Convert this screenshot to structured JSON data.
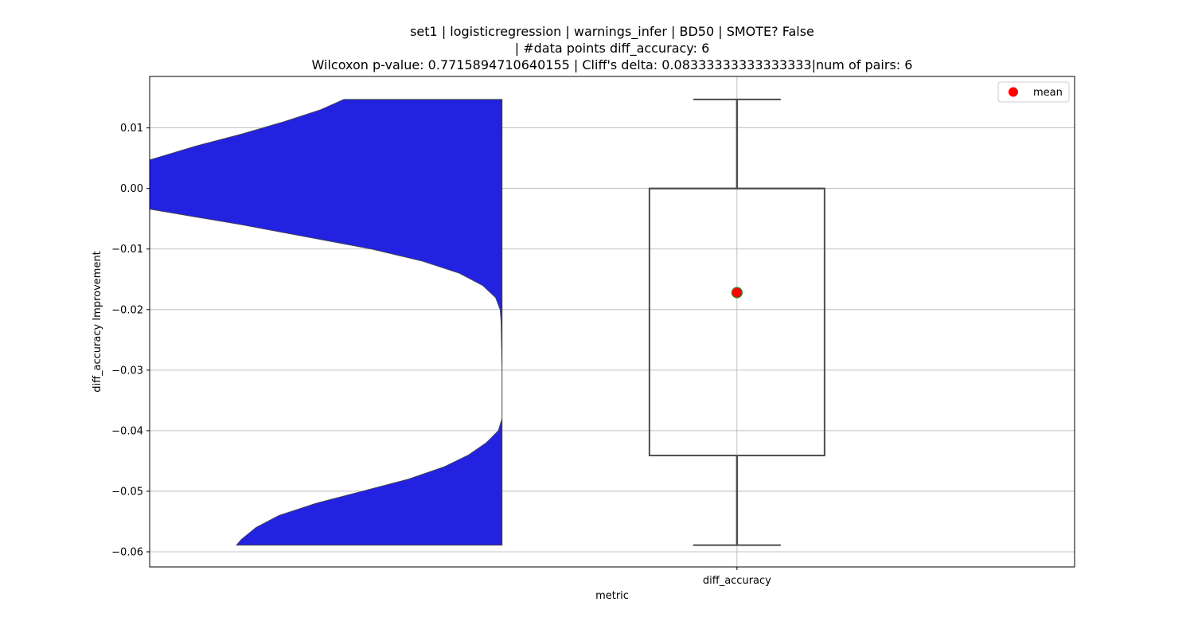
{
  "chart_data": {
    "type": "violin+box",
    "title": [
      "set1 | logisticregression | warnings_infer | BD50 | SMOTE? False",
      "| #data points diff_accuracy: 6",
      "Wilcoxon p-value: 0.7715894710640155 | Cliff's delta: 0.08333333333333333|num of pairs: 6"
    ],
    "xlabel": "metric",
    "ylabel": "diff_accuracy Improvement",
    "categories": [
      "diff_accuracy"
    ],
    "ylim": [
      -0.0625,
      0.0185
    ],
    "yticks": [
      0.01,
      0.0,
      -0.01,
      -0.02,
      -0.03,
      -0.04,
      -0.05,
      -0.06
    ],
    "ytick_labels": [
      "0.01",
      "0.00",
      "−0.01",
      "−0.02",
      "−0.03",
      "−0.04",
      "−0.05",
      "−0.06"
    ],
    "grid": true,
    "legend": {
      "position": "top-right",
      "entries": [
        {
          "label": "mean",
          "marker": "circle",
          "color": "#ff0000"
        }
      ]
    },
    "box": {
      "category": "diff_accuracy",
      "whisker_low": -0.0589,
      "q1": -0.0441,
      "median": 0.0,
      "q3": 0.0,
      "whisker_high": 0.0147,
      "mean": -0.0172
    },
    "violin": {
      "fill_color": "#2222e0",
      "edge_color": "#444444",
      "y_range": [
        -0.0589,
        0.0147
      ],
      "upper_edge_curve": [
        [
          0.0147,
          0.21
        ],
        [
          0.013,
          0.185
        ],
        [
          0.011,
          0.145
        ],
        [
          0.009,
          0.1
        ],
        [
          0.007,
          0.05
        ],
        [
          0.0047,
          0.0
        ]
      ],
      "lower_edge_curve": [
        [
          -0.0034,
          0.0
        ],
        [
          -0.006,
          0.1
        ],
        [
          -0.008,
          0.17
        ],
        [
          -0.01,
          0.24
        ],
        [
          -0.012,
          0.295
        ],
        [
          -0.014,
          0.335
        ],
        [
          -0.016,
          0.36
        ],
        [
          -0.018,
          0.374
        ],
        [
          -0.02,
          0.379
        ],
        [
          -0.022,
          0.38
        ],
        [
          -0.03,
          0.381
        ],
        [
          -0.038,
          0.381
        ],
        [
          -0.04,
          0.377
        ],
        [
          -0.042,
          0.364
        ],
        [
          -0.044,
          0.345
        ],
        [
          -0.046,
          0.318
        ],
        [
          -0.048,
          0.28
        ],
        [
          -0.05,
          0.23
        ],
        [
          -0.052,
          0.18
        ],
        [
          -0.054,
          0.14
        ],
        [
          -0.056,
          0.115
        ],
        [
          -0.058,
          0.099
        ],
        [
          -0.0589,
          0.094
        ]
      ],
      "right_limit": 0.381
    },
    "colors": {
      "mean_marker": "#ff0000",
      "mean_edge": "#2e8b2e",
      "box_edge": "#4d4d4d",
      "grid": "#b0b0b0"
    }
  }
}
